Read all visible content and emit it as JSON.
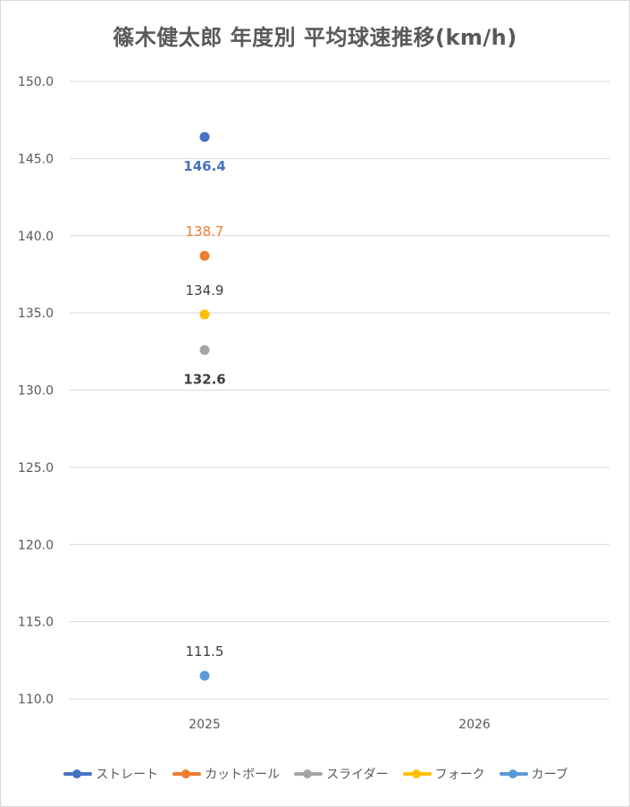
{
  "chart_data": {
    "type": "scatter",
    "title": "篠木健太郎 年度別 平均球速推移(km/h)",
    "categories": [
      "2025",
      "2026"
    ],
    "ylim": [
      110.0,
      150.0
    ],
    "y_ticks": [
      "110.0",
      "115.0",
      "120.0",
      "125.0",
      "130.0",
      "135.0",
      "140.0",
      "145.0",
      "150.0"
    ],
    "grid": true,
    "legend_position": "bottom",
    "series": [
      {
        "name": "ストレート",
        "color": "#4472C4",
        "values": [
          146.4,
          null
        ],
        "labels": [
          "146.4",
          ""
        ],
        "label_position": "below",
        "label_bold": true
      },
      {
        "name": "カットボール",
        "color": "#ED7D31",
        "values": [
          138.7,
          null
        ],
        "labels": [
          "138.7",
          ""
        ],
        "label_position": "above",
        "label_bold": false
      },
      {
        "name": "スライダー",
        "color": "#A5A5A5",
        "values": [
          132.6,
          null
        ],
        "labels": [
          "132.6",
          ""
        ],
        "label_position": "below",
        "label_bold": true
      },
      {
        "name": "フォーク",
        "color": "#FFC000",
        "values": [
          134.9,
          null
        ],
        "labels": [
          "134.9",
          ""
        ],
        "label_position": "above",
        "label_bold": false
      },
      {
        "name": "カーブ",
        "color": "#5B9BD5",
        "values": [
          111.5,
          null
        ],
        "labels": [
          "111.5",
          ""
        ],
        "label_position": "above",
        "label_bold": false
      }
    ]
  }
}
